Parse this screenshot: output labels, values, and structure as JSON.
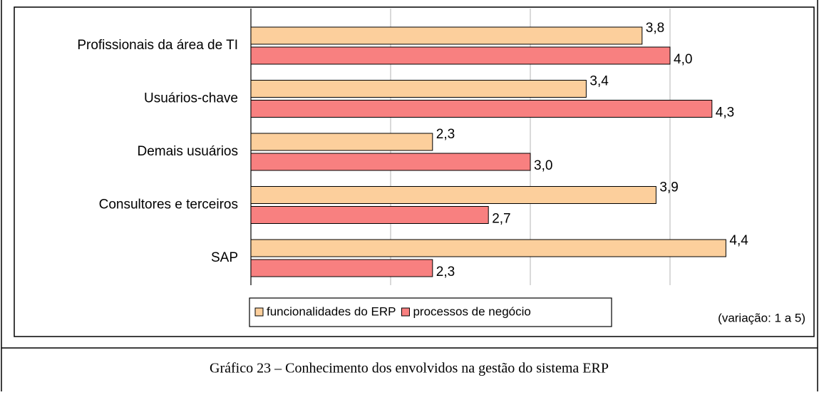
{
  "chart_data": {
    "type": "barh",
    "categories": [
      "Profissionais da área de TI",
      "Usuários-chave",
      "Demais usuários",
      "Consultores e terceiros",
      "SAP"
    ],
    "series": [
      {
        "name": "funcionalidades do ERP",
        "color": "#fccf9c",
        "values": [
          3.8,
          3.4,
          2.3,
          3.9,
          4.4
        ],
        "value_labels": [
          "3,8",
          "3,4",
          "2,3",
          "3,9",
          "4,4"
        ]
      },
      {
        "name": "processos de negócio",
        "color": "#f88080",
        "values": [
          4.0,
          4.3,
          3.0,
          2.7,
          2.3
        ],
        "value_labels": [
          "4,0",
          "4,3",
          "3,0",
          "2,7",
          "2,3"
        ]
      }
    ],
    "xlim": [
      1,
      5
    ],
    "xticks": [
      1,
      2,
      3,
      4,
      5
    ],
    "grid": true,
    "note": "(variação: 1 a 5)",
    "caption": "Gráfico 23 – Conhecimento dos envolvidos na gestão do sistema ERP"
  }
}
